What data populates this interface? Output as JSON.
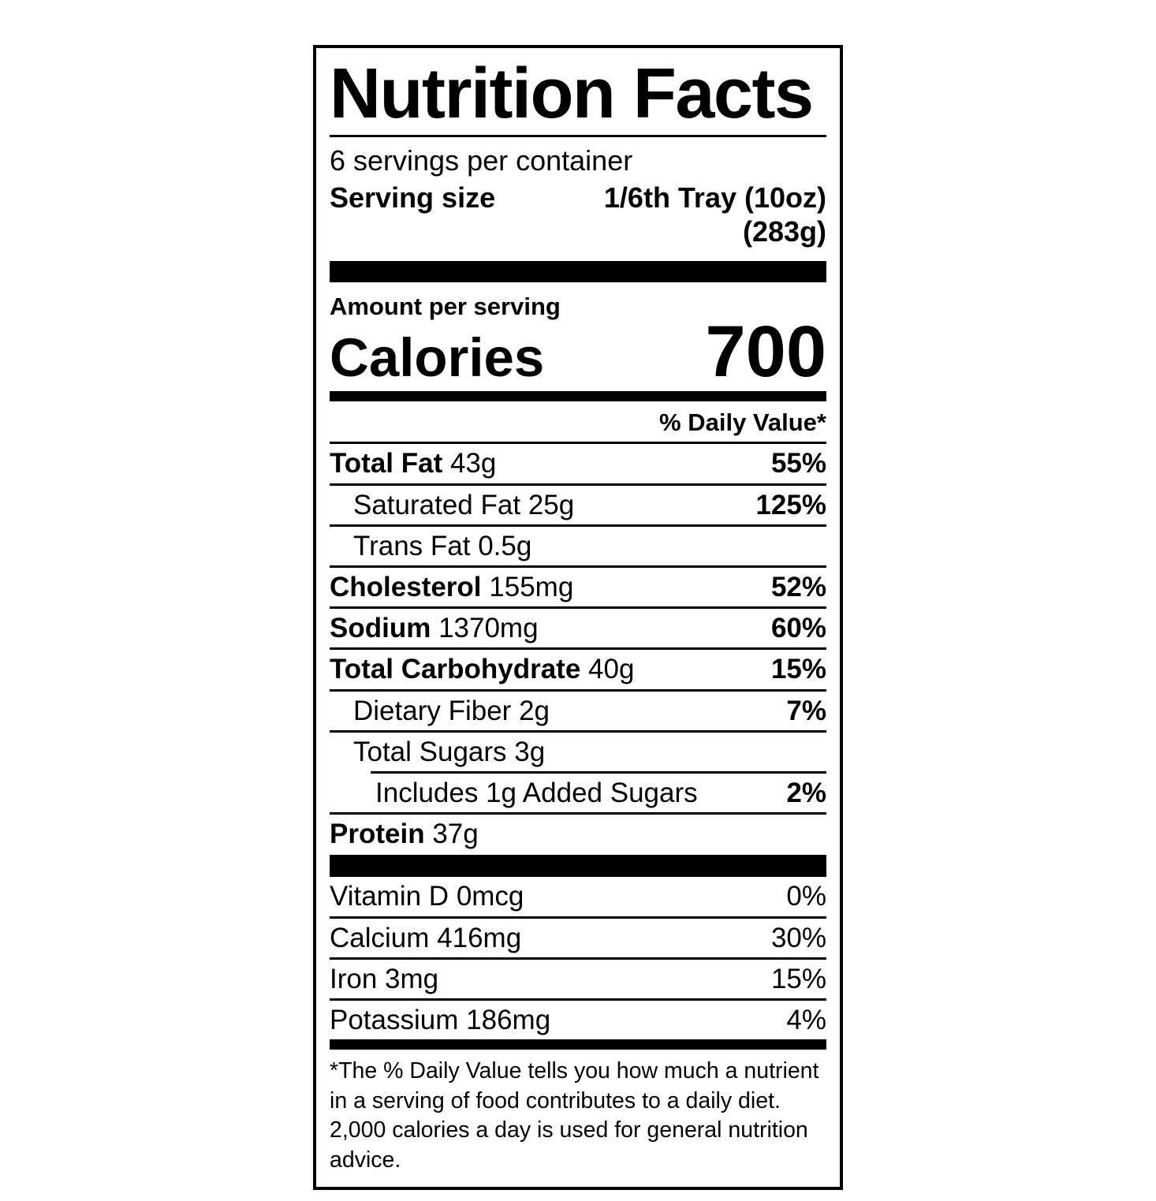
{
  "colors": {
    "text": "#000000",
    "background": "#ffffff",
    "bars": "#000000"
  },
  "label": {
    "title": "Nutrition Facts",
    "servings_per_container": "6 servings per container",
    "serving_size_label": "Serving size",
    "serving_size_value": "1/6th Tray (10oz)",
    "serving_size_weight": "(283g)",
    "amount_per_serving": "Amount per serving",
    "calories_label": "Calories",
    "calories_value": "700",
    "daily_value_header": "% Daily Value*",
    "nutrients": [
      {
        "name": "Total Fat",
        "amount": "43g",
        "daily_value": "55%"
      },
      {
        "name": "Saturated Fat",
        "amount": "25g",
        "daily_value": "125%"
      },
      {
        "name": "Trans Fat",
        "amount": "0.5g",
        "daily_value": ""
      },
      {
        "name": "Cholesterol",
        "amount": "155mg",
        "daily_value": "52%"
      },
      {
        "name": "Sodium",
        "amount": "1370mg",
        "daily_value": "60%"
      },
      {
        "name": "Total Carbohydrate",
        "amount": "40g",
        "daily_value": "15%"
      },
      {
        "name": "Dietary Fiber",
        "amount": "2g",
        "daily_value": "7%"
      },
      {
        "name": "Total Sugars",
        "amount": "3g",
        "daily_value": ""
      },
      {
        "name": "Includes 1g Added Sugars",
        "amount": "",
        "daily_value": "2%"
      },
      {
        "name": "Protein",
        "amount": "37g",
        "daily_value": ""
      }
    ],
    "micronutrients": [
      {
        "name": "Vitamin D",
        "amount": "0mcg",
        "daily_value": "0%"
      },
      {
        "name": "Calcium",
        "amount": "416mg",
        "daily_value": "30%"
      },
      {
        "name": "Iron",
        "amount": "3mg",
        "daily_value": "15%"
      },
      {
        "name": "Potassium",
        "amount": "186mg",
        "daily_value": "4%"
      }
    ],
    "footnote": "*The % Daily Value tells you how much a nutrient in a serving of food contributes to a daily diet. 2,000 calories a day is used for general nutrition advice."
  }
}
